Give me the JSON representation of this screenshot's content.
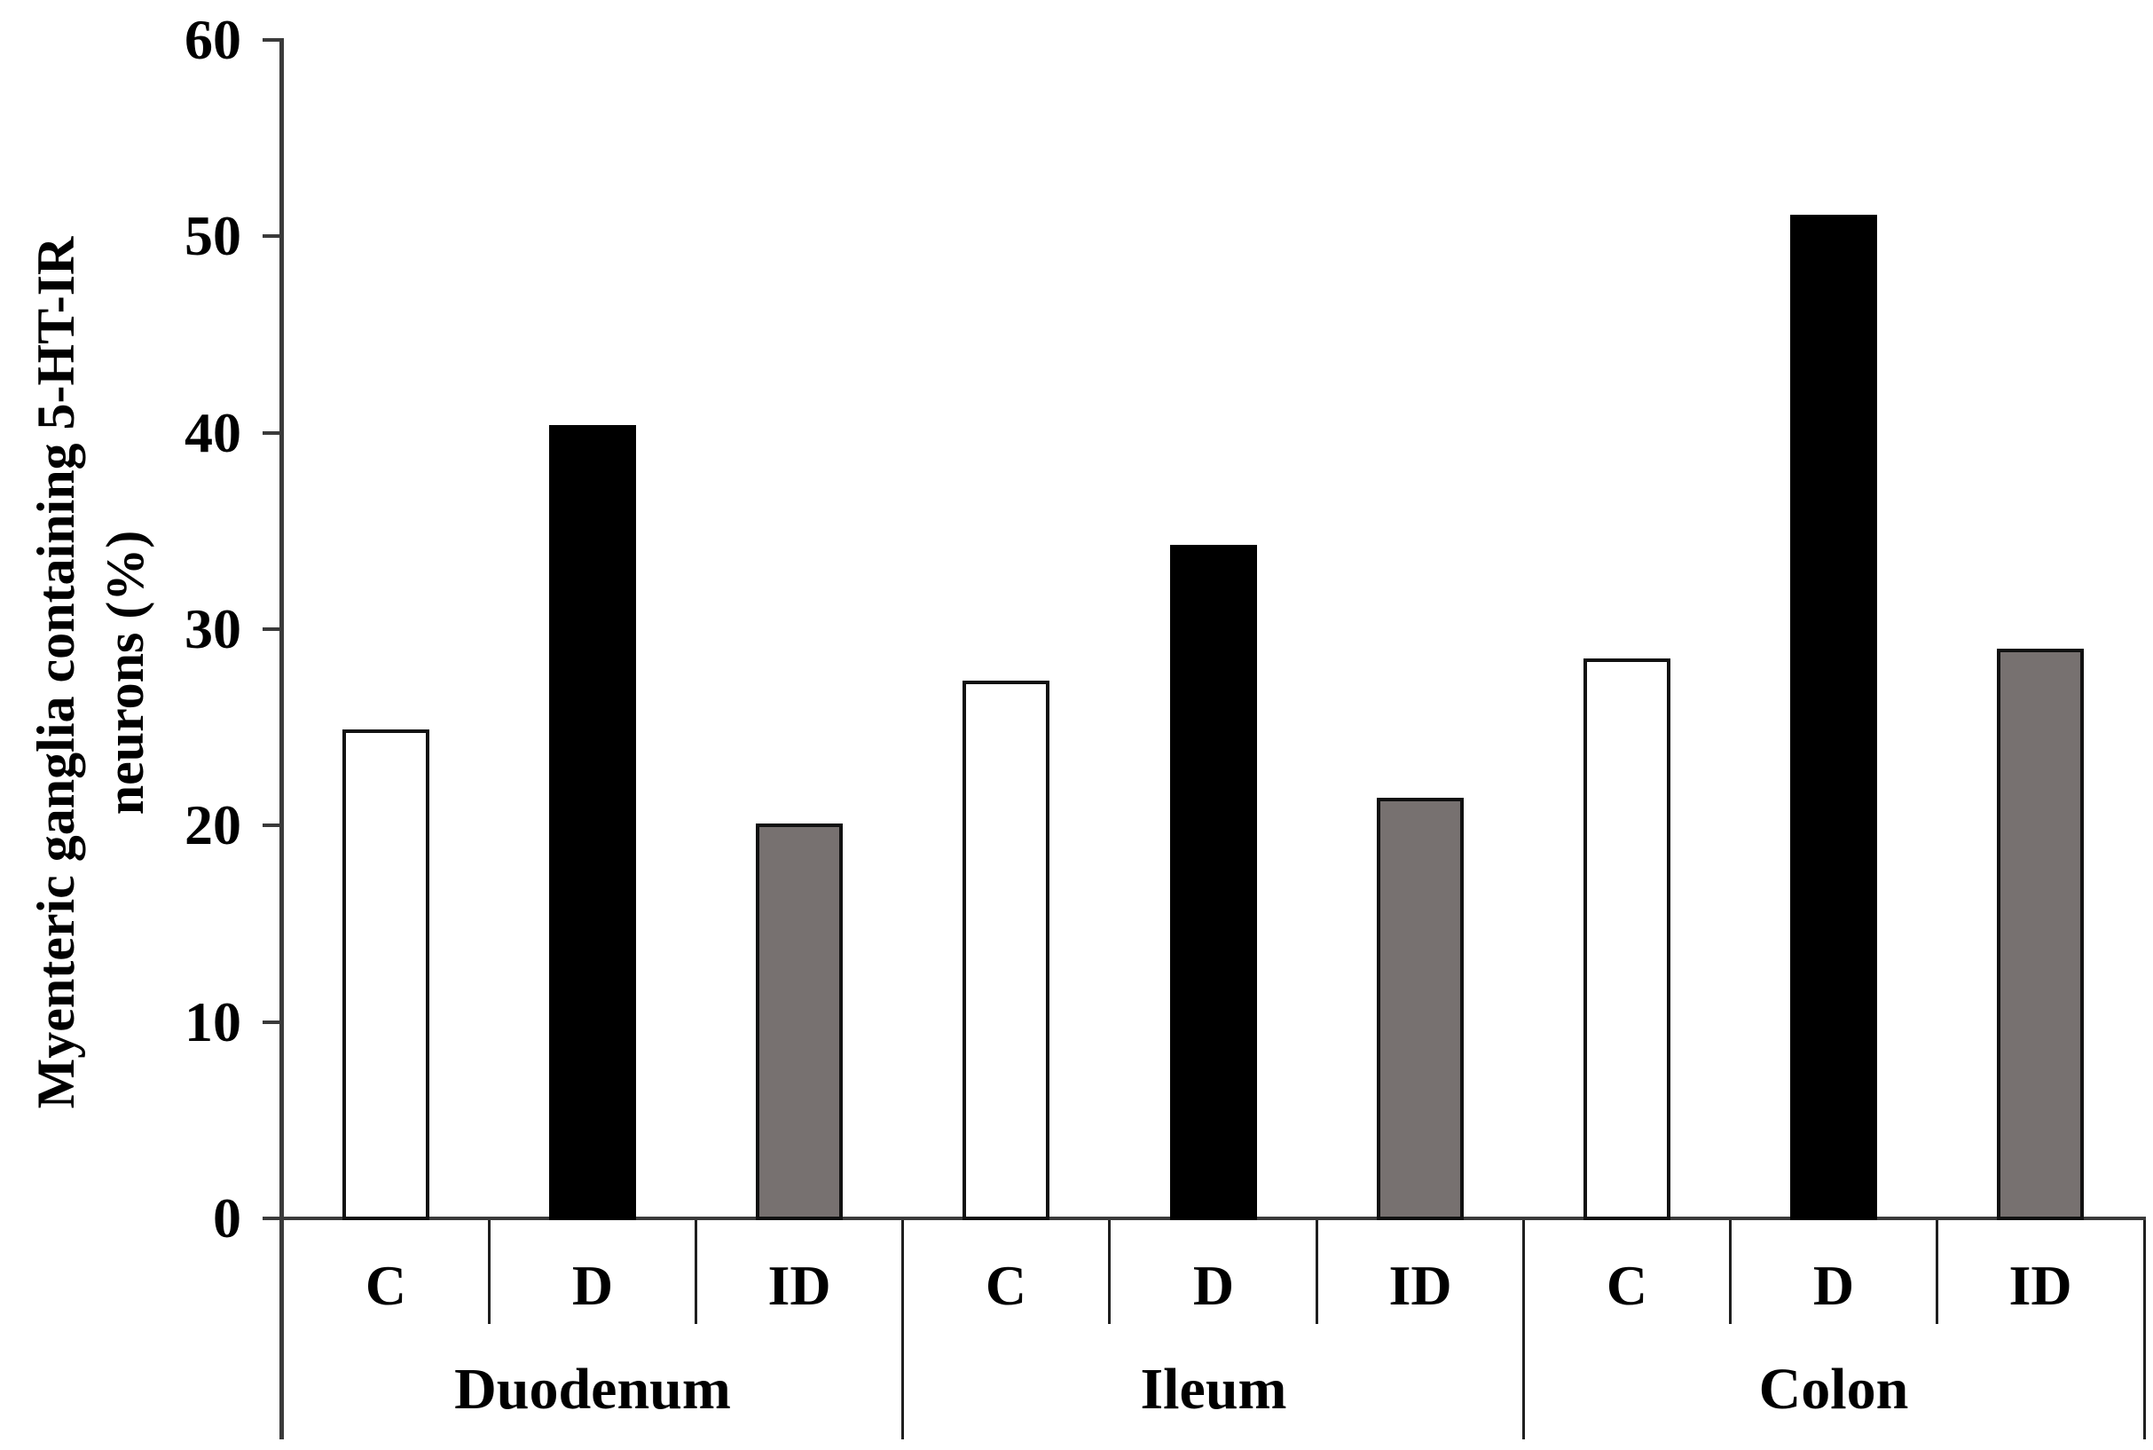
{
  "figure": {
    "ylabel_line1": "Myenteric ganglia containing 5-HT-IR",
    "ylabel_line2": "neurons (%)"
  },
  "chart_data": {
    "type": "bar",
    "title": "",
    "ylabel": "Myenteric ganglia containing 5-HT-IR neurons (%)",
    "xlabel": "",
    "categories": [
      "Duodenum",
      "Ileum",
      "Colon"
    ],
    "bar_order_within_group": [
      "C",
      "D",
      "ID"
    ],
    "series": [
      {
        "name": "C",
        "fill": "#ffffff",
        "values": [
          24.9,
          27.4,
          28.5
        ]
      },
      {
        "name": "D",
        "fill": "#000000",
        "values": [
          40.4,
          34.3,
          51.1
        ]
      },
      {
        "name": "ID",
        "fill": "#777170",
        "values": [
          20.1,
          21.4,
          29.0
        ]
      }
    ],
    "yticks": [
      0,
      10,
      20,
      30,
      40,
      50,
      60
    ],
    "ylim": [
      0,
      60
    ],
    "grid": false,
    "legend": "none",
    "bar_outline_color": "#111111",
    "axis_color": "#3a3a3a"
  }
}
